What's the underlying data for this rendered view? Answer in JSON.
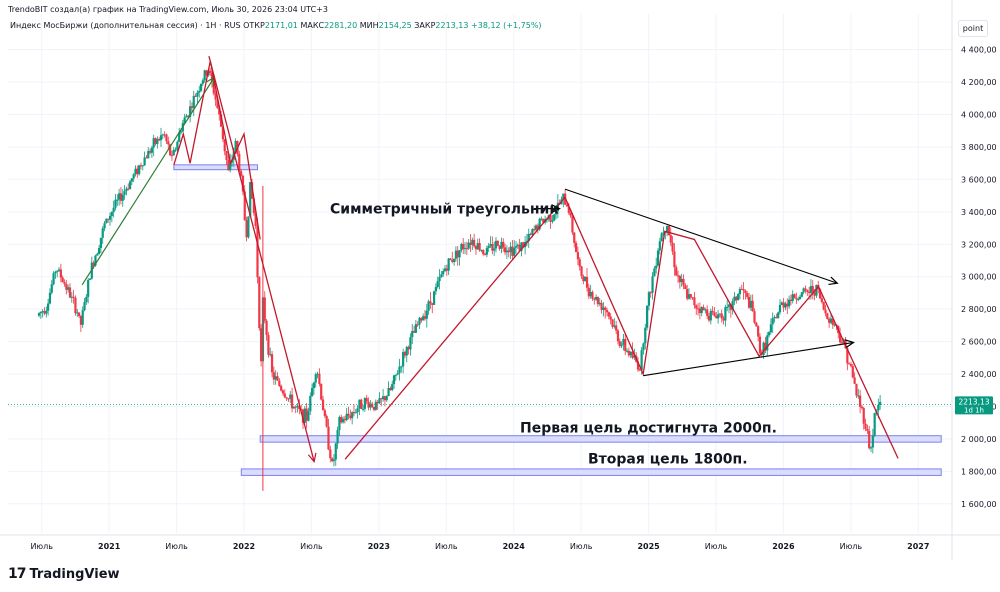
{
  "header": {
    "attribution": "TrendoBIT создал(а) график на TradingView.com, Июль 30, 2026 23:04 UTC+3"
  },
  "legend": {
    "symbol": "Индекс МосБиржи (дополнительная сессия) · 1Н · RUS",
    "open_label": "ОТКР",
    "open_value": "2171,01",
    "high_label": "МАКС",
    "high_value": "2281,20",
    "low_label": "МИН",
    "low_value": "2154,25",
    "close_label": "ЗАКР",
    "close_value": "2213,13",
    "change": "+38,12 (+1,75%)"
  },
  "unit_button": "point",
  "price_badge": {
    "value": "2213,13",
    "interval": "1d 1h",
    "color": "#089981"
  },
  "footer": {
    "brand": "TradingView",
    "logo": "tradingview-logo-icon"
  },
  "annotations": {
    "triangle": "Симметричный треугольник",
    "target1": "Первая цель достигнута 2000п.",
    "target2": "Вторая цель 1800п."
  },
  "colors": {
    "up": "#089981",
    "down": "#f23645",
    "zigzag": "#c2182b",
    "trend_green": "#2e7d32",
    "level_fill": "#d9dcff",
    "level_stroke": "#7b83e8",
    "triangle_line": "#000000"
  },
  "chart_data": {
    "type": "candlestick",
    "x_tick_labels": [
      "Июль",
      "2021",
      "Июль",
      "2022",
      "Июль",
      "2023",
      "Июль",
      "2024",
      "Июль",
      "2025",
      "Июль",
      "2026",
      "Июль",
      "2027"
    ],
    "x_ticks": [
      2020.5,
      2021.0,
      2021.5,
      2022.0,
      2022.5,
      2023.0,
      2023.5,
      2024.0,
      2024.5,
      2025.0,
      2025.5,
      2026.0,
      2026.5,
      2027.0
    ],
    "y_ticks": [
      1600,
      1800,
      2000,
      2200,
      2400,
      2600,
      2800,
      3000,
      3200,
      3400,
      3600,
      3800,
      4000,
      4200,
      4400
    ],
    "y_tick_labels": [
      "1 600,00",
      "1 800,00",
      "2 000,00",
      "2 200,00",
      "2 400,00",
      "2 600,00",
      "2 800,00",
      "3 000,00",
      "3 200,00",
      "3 400,00",
      "3 600,00",
      "3 800,00",
      "4 000,00",
      "4 200,00",
      "4 400,00"
    ],
    "ylim": [
      1420,
      4620
    ],
    "xlim": [
      2020.25,
      2027.25
    ],
    "last_price": 2213.13,
    "price_path": [
      [
        2020.48,
        2760
      ],
      [
        2020.55,
        2820
      ],
      [
        2020.62,
        3060
      ],
      [
        2020.7,
        2930
      ],
      [
        2020.78,
        2780
      ],
      [
        2020.8,
        2690
      ],
      [
        2020.88,
        3050
      ],
      [
        2020.98,
        3320
      ],
      [
        2021.05,
        3430
      ],
      [
        2021.15,
        3560
      ],
      [
        2021.25,
        3700
      ],
      [
        2021.35,
        3820
      ],
      [
        2021.42,
        3880
      ],
      [
        2021.48,
        3720
      ],
      [
        2021.55,
        3930
      ],
      [
        2021.62,
        4050
      ],
      [
        2021.7,
        4210
      ],
      [
        2021.75,
        4280
      ],
      [
        2021.8,
        4110
      ],
      [
        2021.85,
        3900
      ],
      [
        2021.9,
        3630
      ],
      [
        2021.95,
        3830
      ],
      [
        2022.0,
        3560
      ],
      [
        2022.03,
        3240
      ],
      [
        2022.06,
        3560
      ],
      [
        2022.1,
        3310
      ],
      [
        2022.14,
        2440
      ],
      [
        2022.15,
        2860
      ],
      [
        2022.22,
        2400
      ],
      [
        2022.3,
        2300
      ],
      [
        2022.4,
        2180
      ],
      [
        2022.48,
        2130
      ],
      [
        2022.55,
        2460
      ],
      [
        2022.62,
        2080
      ],
      [
        2022.67,
        1820
      ],
      [
        2022.72,
        2100
      ],
      [
        2022.8,
        2150
      ],
      [
        2022.9,
        2230
      ],
      [
        2023.0,
        2200
      ],
      [
        2023.1,
        2300
      ],
      [
        2023.2,
        2520
      ],
      [
        2023.3,
        2700
      ],
      [
        2023.4,
        2850
      ],
      [
        2023.5,
        3050
      ],
      [
        2023.6,
        3160
      ],
      [
        2023.7,
        3230
      ],
      [
        2023.8,
        3150
      ],
      [
        2023.9,
        3210
      ],
      [
        2024.0,
        3170
      ],
      [
        2024.1,
        3200
      ],
      [
        2024.2,
        3330
      ],
      [
        2024.3,
        3380
      ],
      [
        2024.38,
        3480
      ],
      [
        2024.42,
        3430
      ],
      [
        2024.5,
        3040
      ],
      [
        2024.6,
        2880
      ],
      [
        2024.7,
        2800
      ],
      [
        2024.8,
        2600
      ],
      [
        2024.9,
        2500
      ],
      [
        2024.95,
        2440
      ],
      [
        2025.0,
        2800
      ],
      [
        2025.1,
        3250
      ],
      [
        2025.15,
        3340
      ],
      [
        2025.22,
        3020
      ],
      [
        2025.3,
        2880
      ],
      [
        2025.4,
        2800
      ],
      [
        2025.5,
        2760
      ],
      [
        2025.6,
        2780
      ],
      [
        2025.7,
        2930
      ],
      [
        2025.78,
        2800
      ],
      [
        2025.85,
        2520
      ],
      [
        2025.92,
        2680
      ],
      [
        2026.0,
        2830
      ],
      [
        2026.1,
        2880
      ],
      [
        2026.18,
        2900
      ],
      [
        2026.26,
        2930
      ],
      [
        2026.32,
        2780
      ],
      [
        2026.4,
        2700
      ],
      [
        2026.48,
        2540
      ],
      [
        2026.55,
        2300
      ],
      [
        2026.62,
        2100
      ],
      [
        2026.66,
        1920
      ],
      [
        2026.69,
        2140
      ],
      [
        2026.72,
        2213
      ]
    ]
  }
}
